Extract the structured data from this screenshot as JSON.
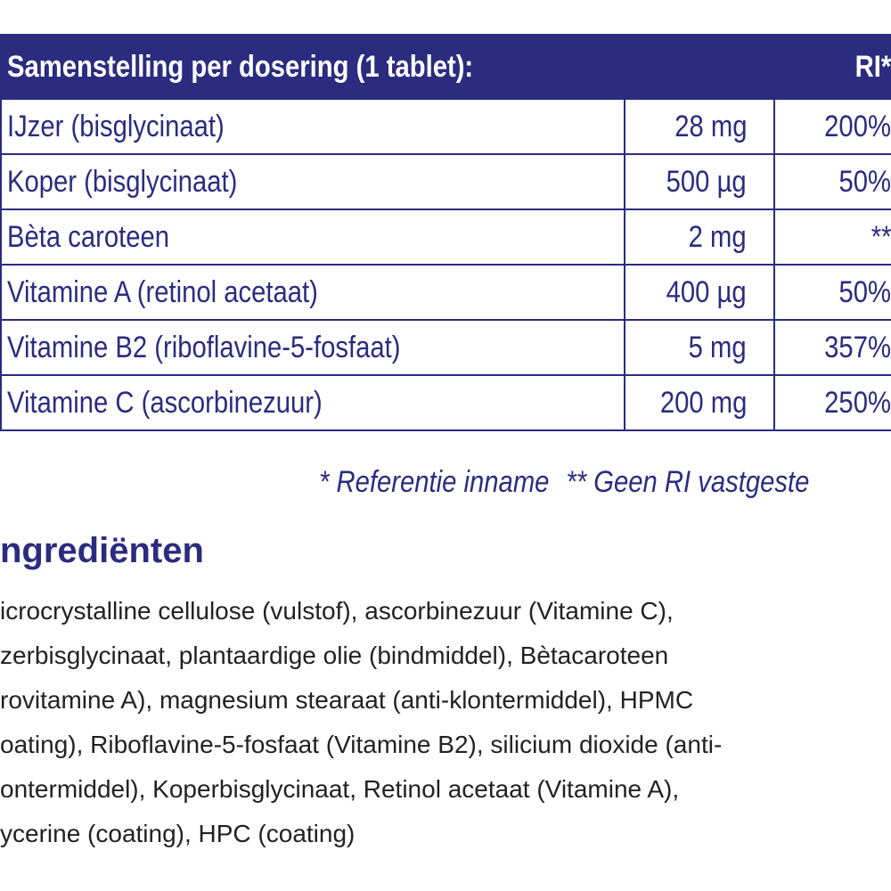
{
  "table": {
    "header": [
      "Samenstelling per dosering (1 tablet):",
      "RI*"
    ],
    "rows": [
      [
        "IJzer (bisglycinaat)",
        "28 mg",
        "200%"
      ],
      [
        "Koper (bisglycinaat)",
        "500 µg",
        "50%"
      ],
      [
        "Bèta caroteen",
        "2 mg",
        "**"
      ],
      [
        "Vitamine A (retinol acetaat)",
        "400 µg",
        "50%"
      ],
      [
        "Vitamine B2 (riboflavine-5-fosfaat)",
        "5 mg",
        "357%"
      ],
      [
        "Vitamine C (ascorbinezuur)",
        "200 mg",
        "250%"
      ]
    ]
  },
  "footnote": [
    "* Referentie inname",
    "** Geen RI vastgeste"
  ],
  "ingredients": {
    "title": "ngrediënten",
    "lines": [
      "icrocrystalline cellulose (vulstof), ascorbinezuur (Vitamine C),",
      "zerbisglycinaat, plantaardige olie (bindmiddel), Bètacaroteen",
      "rovitamine A), magnesium stearaat (anti-klontermiddel), HPMC",
      "oating), Riboflavine-5-fosfaat (Vitamine B2), silicium dioxide (anti-",
      "ontermiddel), Koperbisglycinaat, Retinol acetaat (Vitamine A),",
      "ycerine (coating), HPC (coating)"
    ]
  }
}
